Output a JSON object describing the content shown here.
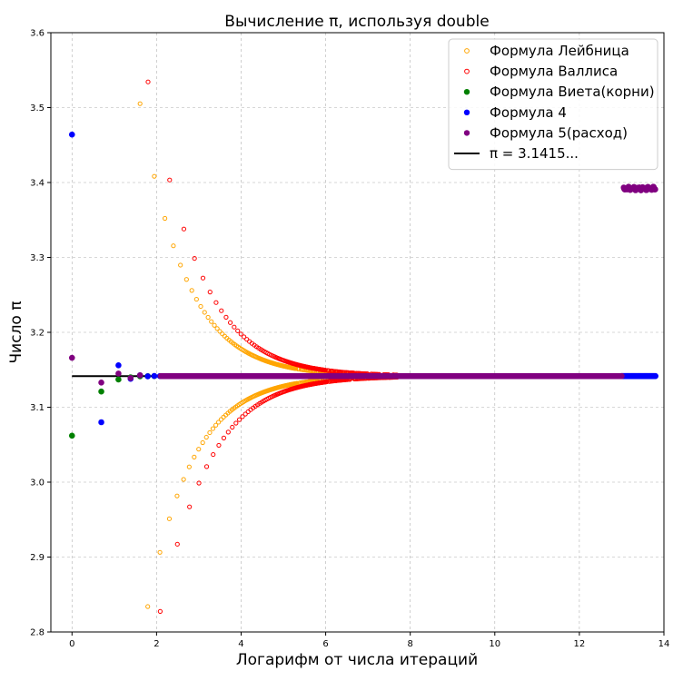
{
  "chart_data": {
    "type": "scatter",
    "title": "Вычисление π, используя double",
    "xlabel": "Логарифм от числа итераций",
    "ylabel": "Число π",
    "xlim": [
      -0.5,
      14
    ],
    "ylim": [
      2.8,
      3.6
    ],
    "xticks": [
      "0",
      "2",
      "4",
      "6",
      "8",
      "10",
      "12",
      "14"
    ],
    "yticks": [
      "2.8",
      "2.9",
      "3.0",
      "3.1",
      "3.2",
      "3.3",
      "3.4",
      "3.5",
      "3.6"
    ],
    "grid": true,
    "legend_position": "top-right",
    "reference_line": {
      "label": "π = 3.1415...",
      "y": 3.14159,
      "x": [
        0,
        13.8
      ],
      "color": "#000000"
    },
    "series": [
      {
        "name": "Формула Лейбница",
        "marker": "hollow-circle",
        "color": "#ffa500",
        "formula": "leibniz"
      },
      {
        "name": "Формула Валлиса",
        "marker": "hollow-circle",
        "color": "#ff0000",
        "formula": "wallis"
      },
      {
        "name": "Формула Виета(корни)",
        "marker": "filled-circle",
        "color": "#008000",
        "points": [
          [
            0,
            3.062
          ],
          [
            0.693,
            3.121
          ],
          [
            1.099,
            3.137
          ],
          [
            1.386,
            3.14
          ],
          [
            1.609,
            3.1413
          ],
          [
            1.792,
            3.1415
          ],
          [
            1.946,
            3.1416
          ]
        ]
      },
      {
        "name": "Формула 4",
        "marker": "filled-circle",
        "color": "#0000ff",
        "points": [
          [
            0,
            3.464
          ],
          [
            0.693,
            3.08
          ],
          [
            1.099,
            3.156
          ],
          [
            1.386,
            3.138
          ],
          [
            1.609,
            3.1427
          ],
          [
            1.792,
            3.1413
          ],
          [
            1.946,
            3.1417
          ],
          [
            2.079,
            3.1416
          ]
        ],
        "tail": {
          "x_start": 13.0,
          "x_end": 13.8,
          "y": 3.1416
        }
      },
      {
        "name": "Формула 5(расход)",
        "marker": "filled-circle",
        "color": "#800080",
        "points": [
          [
            0,
            3.166
          ],
          [
            0.693,
            3.133
          ],
          [
            1.099,
            3.145
          ],
          [
            1.386,
            3.139
          ],
          [
            1.609,
            3.1427
          ]
        ],
        "divergent_cluster": {
          "x_start": 13.05,
          "x_end": 13.8,
          "y": 3.392
        }
      }
    ]
  }
}
